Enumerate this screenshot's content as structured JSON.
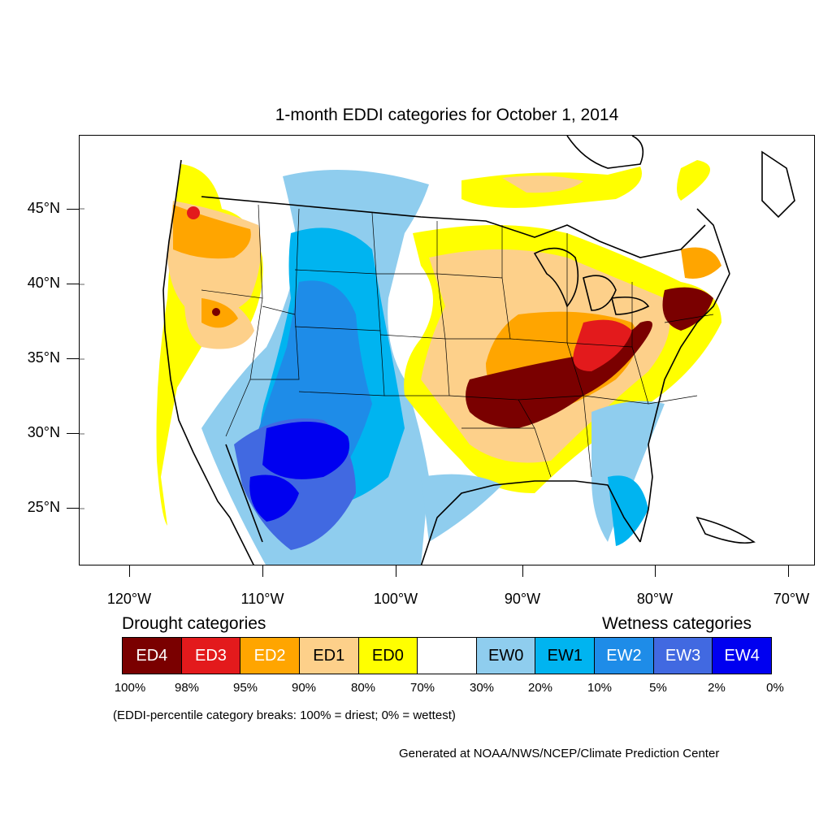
{
  "title": "1-month EDDI categories for October 1, 2014",
  "lat_labels": [
    "45°N",
    "40°N",
    "35°N",
    "30°N",
    "25°N"
  ],
  "lon_labels": [
    "120°W",
    "110°W",
    "100°W",
    "90°W",
    "80°W",
    "70°W"
  ],
  "legend": {
    "drought_heading": "Drought categories",
    "wetness_heading": "Wetness categories",
    "categories": [
      {
        "label": "ED4",
        "color": "#7a0000",
        "text_color": "#ffffff"
      },
      {
        "label": "ED3",
        "color": "#e31a1c",
        "text_color": "#ffffff"
      },
      {
        "label": "ED2",
        "color": "#ffa500",
        "text_color": "#ffffff"
      },
      {
        "label": "ED1",
        "color": "#fdd08a",
        "text_color": "#000000"
      },
      {
        "label": "ED0",
        "color": "#ffff00",
        "text_color": "#000000"
      },
      {
        "label": "",
        "color": "#ffffff",
        "text_color": "#000000"
      },
      {
        "label": "EW0",
        "color": "#8fcdee",
        "text_color": "#000000"
      },
      {
        "label": "EW1",
        "color": "#00b4f0",
        "text_color": "#000000"
      },
      {
        "label": "EW2",
        "color": "#1e8ce8",
        "text_color": "#ffffff"
      },
      {
        "label": "EW3",
        "color": "#4169e1",
        "text_color": "#ffffff"
      },
      {
        "label": "EW4",
        "color": "#0000f0",
        "text_color": "#ffffff"
      }
    ],
    "percent_breaks": [
      "100%",
      "98%",
      "95%",
      "90%",
      "80%",
      "70%",
      "30%",
      "20%",
      "10%",
      "5%",
      "2%",
      "0%"
    ]
  },
  "breaks_note": "(EDDI-percentile category breaks: 100% = driest; 0% = wettest)",
  "credit": "Generated at NOAA/NWS/NCEP/Climate Prediction Center"
}
